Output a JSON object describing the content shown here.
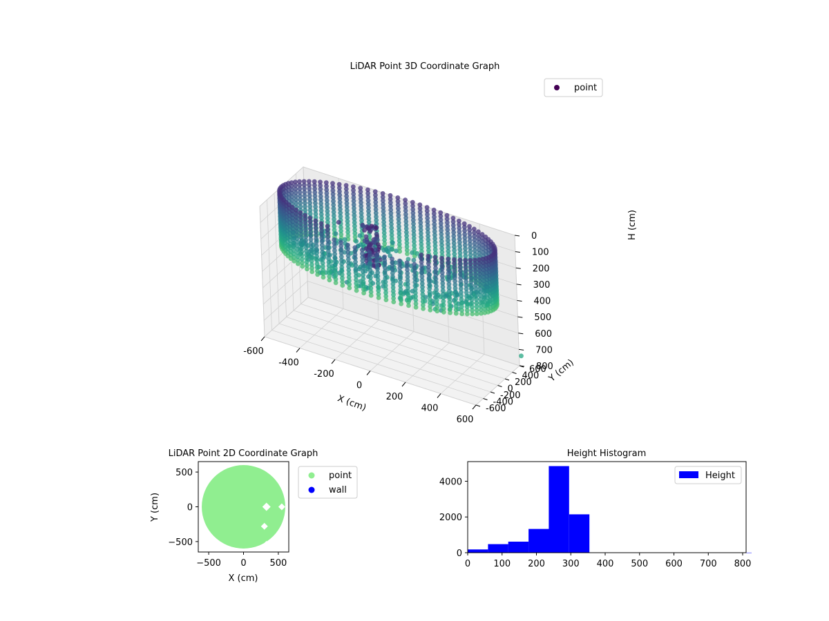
{
  "chart_data": [
    {
      "type": "scatter",
      "title": "LiDAR Point 3D Coordinate Graph",
      "xlabel": "X (cm)",
      "ylabel": "Y (cm)",
      "zlabel": "H (cm)",
      "xlim": [
        -600,
        600
      ],
      "ylim": [
        -600,
        600
      ],
      "zlim": [
        0,
        800
      ],
      "z_axis_inverted": true,
      "x_ticks": [
        -600,
        -400,
        -200,
        0,
        200,
        400,
        600
      ],
      "y_ticks": [
        -600,
        -400,
        -200,
        0,
        200,
        400,
        600
      ],
      "z_ticks": [
        0,
        100,
        200,
        300,
        400,
        500,
        600,
        700,
        800
      ],
      "colormap": "viridis (colored by height)",
      "legend": {
        "entries": [
          "point"
        ],
        "position": "top-right",
        "marker_color": "#440154"
      },
      "grid": true,
      "shape_description": "ring-shaped wall of points of radius ~600 cm spanning heights ~0-330 cm plus a central column of points",
      "ring_radius": 600,
      "ring_height_range": [
        0,
        330
      ],
      "extra_points": [
        {
          "x": -290,
          "y": 50,
          "h": 120
        },
        {
          "x": 640,
          "y": 470,
          "h": 700
        },
        {
          "x": -120,
          "y": -10,
          "h": 170
        },
        {
          "x": -90,
          "y": 20,
          "h": 200
        }
      ]
    },
    {
      "type": "scatter",
      "title": "LiDAR Point 2D Coordinate Graph",
      "xlabel": "X (cm)",
      "ylabel": "Y (cm)",
      "xlim": [
        -650,
        650
      ],
      "ylim": [
        -650,
        650
      ],
      "x_ticks": [
        -500,
        0,
        500
      ],
      "y_ticks": [
        -500,
        0,
        500
      ],
      "series": [
        {
          "name": "point",
          "color": "#90ee90"
        },
        {
          "name": "wall",
          "color": "#0000ff"
        }
      ],
      "legend": {
        "position": "outside right, top"
      },
      "grid": false,
      "shape_description": "filled disc of radius ~600 cm with a few small gaps near x 300-600, y -550-50"
    },
    {
      "type": "bar",
      "title": "Height Histogram",
      "xlim": [
        0,
        810
      ],
      "ylim": [
        0,
        5100
      ],
      "x_ticks": [
        0,
        100,
        200,
        300,
        400,
        500,
        600,
        700,
        800
      ],
      "y_ticks": [
        0,
        2000,
        4000
      ],
      "bins": [
        {
          "start": 0,
          "end": 59,
          "count": 180
        },
        {
          "start": 59,
          "end": 118,
          "count": 480
        },
        {
          "start": 118,
          "end": 177,
          "count": 620
        },
        {
          "start": 177,
          "end": 236,
          "count": 1330
        },
        {
          "start": 236,
          "end": 295,
          "count": 4850
        },
        {
          "start": 295,
          "end": 354,
          "count": 2150
        },
        {
          "start": 354,
          "end": 413,
          "count": 0
        },
        {
          "start": 413,
          "end": 472,
          "count": 0
        },
        {
          "start": 472,
          "end": 531,
          "count": 0
        },
        {
          "start": 531,
          "end": 590,
          "count": 0
        },
        {
          "start": 590,
          "end": 649,
          "count": 0
        },
        {
          "start": 649,
          "end": 708,
          "count": 0
        },
        {
          "start": 708,
          "end": 767,
          "count": 0
        },
        {
          "start": 767,
          "end": 826,
          "count": 2
        }
      ],
      "series": [
        {
          "name": "Height",
          "color": "#0000ff"
        }
      ],
      "legend": {
        "position": "top-right"
      },
      "grid": false
    }
  ]
}
